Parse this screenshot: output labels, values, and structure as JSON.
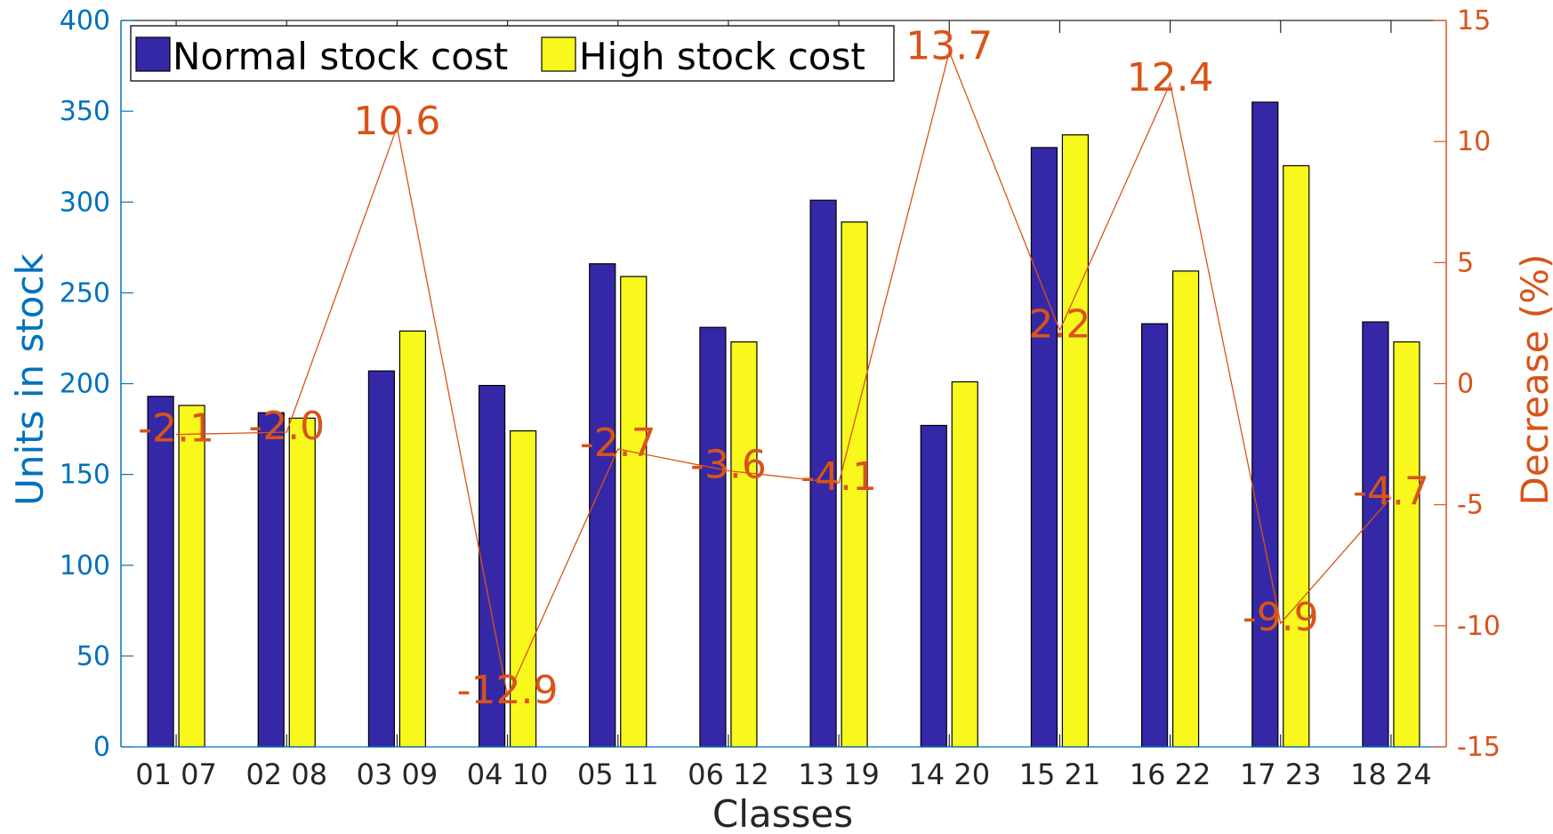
{
  "colors": {
    "normal": "#3528A6",
    "high": "#F8F81C",
    "left_axis": "#0072BD",
    "right_axis": "#D95319",
    "text": "#262626"
  },
  "chart_data": {
    "type": "bar",
    "categories": [
      "01 07",
      "02 08",
      "03 09",
      "04 10",
      "05 11",
      "06 12",
      "13 19",
      "14 20",
      "15 21",
      "16 22",
      "17 23",
      "18 24"
    ],
    "series": [
      {
        "name": "Normal stock cost",
        "values": [
          193,
          184,
          207,
          199,
          266,
          231,
          301,
          177,
          330,
          233,
          355,
          234
        ]
      },
      {
        "name": "High stock cost",
        "values": [
          188,
          181,
          229,
          174,
          259,
          223,
          289,
          201,
          337,
          262,
          320,
          223
        ]
      }
    ],
    "line": {
      "values": [
        -2.1,
        -2.0,
        10.6,
        -12.9,
        -2.7,
        -3.6,
        -4.1,
        13.7,
        2.2,
        12.4,
        -9.9,
        -4.7
      ],
      "labels": [
        "-2.1",
        "-2.0",
        "10.6",
        "-12.9",
        "-2.7",
        "-3.6",
        "-4.1",
        "13.7",
        "2.2",
        "12.4",
        "-9.9",
        "-4.7"
      ]
    },
    "xlabel": "Classes",
    "ylabel": "Units in stock",
    "y2label": "Decrease (%)",
    "ylim": [
      0,
      400
    ],
    "y2lim": [
      -15,
      15
    ],
    "yticks": [
      "0",
      "50",
      "100",
      "150",
      "200",
      "250",
      "300",
      "350",
      "400"
    ],
    "y2ticks": [
      "-15",
      "-10",
      "-5",
      "0",
      "5",
      "10",
      "15"
    ],
    "legend_position": "top-left",
    "grid": false
  }
}
